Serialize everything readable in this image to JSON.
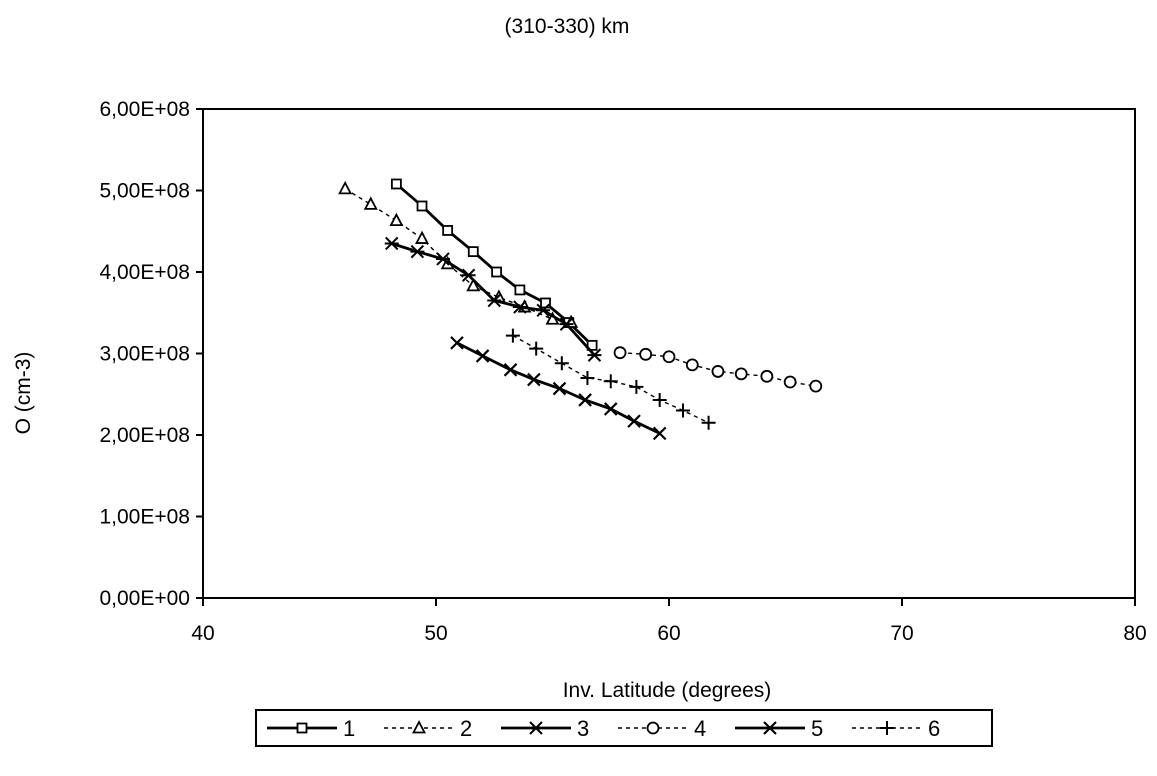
{
  "chart_data": {
    "type": "line",
    "title": "(310-330) km",
    "xlabel": "Inv. Latitude (degrees)",
    "ylabel": "O (cm-3)",
    "xlim": [
      40,
      80
    ],
    "ylim": [
      0,
      600000000
    ],
    "x_ticks": [
      40,
      50,
      60,
      70,
      80
    ],
    "x_tick_labels": [
      "40",
      "50",
      "60",
      "70",
      "80"
    ],
    "y_ticks": [
      0,
      100000000,
      200000000,
      300000000,
      400000000,
      500000000,
      600000000
    ],
    "y_tick_labels": [
      "0,00E+00",
      "1,00E+08",
      "2,00E+08",
      "3,00E+08",
      "4,00E+08",
      "5,00E+08",
      "6,00E+08"
    ],
    "grid": false,
    "legend_position": "bottom",
    "series": [
      {
        "name": "1",
        "line": "solid",
        "marker": "square",
        "points": [
          [
            48.3,
            508000000
          ],
          [
            49.4,
            481000000
          ],
          [
            50.5,
            451000000
          ],
          [
            51.6,
            425000000
          ],
          [
            52.6,
            400000000
          ],
          [
            53.6,
            378000000
          ],
          [
            54.7,
            362000000
          ],
          [
            55.7,
            338000000
          ],
          [
            56.7,
            310000000
          ]
        ]
      },
      {
        "name": "2",
        "line": "dashed",
        "marker": "triangle",
        "points": [
          [
            46.1,
            502000000
          ],
          [
            47.2,
            483000000
          ],
          [
            48.3,
            463000000
          ],
          [
            49.4,
            441000000
          ],
          [
            50.5,
            410000000
          ],
          [
            51.6,
            383000000
          ],
          [
            52.7,
            369000000
          ],
          [
            53.8,
            357000000
          ],
          [
            55.0,
            342000000
          ],
          [
            55.8,
            338000000
          ]
        ]
      },
      {
        "name": "3",
        "line": "solid",
        "marker": "asterisk",
        "points": [
          [
            48.1,
            435000000
          ],
          [
            49.2,
            425000000
          ],
          [
            50.3,
            416000000
          ],
          [
            51.4,
            396000000
          ],
          [
            52.5,
            365000000
          ],
          [
            53.6,
            357000000
          ],
          [
            54.6,
            353000000
          ],
          [
            55.6,
            336000000
          ],
          [
            56.8,
            298000000
          ]
        ]
      },
      {
        "name": "4",
        "line": "dashed",
        "marker": "circle",
        "points": [
          [
            57.9,
            301000000
          ],
          [
            59.0,
            299000000
          ],
          [
            60.0,
            296000000
          ],
          [
            61.0,
            286000000
          ],
          [
            62.1,
            278000000
          ],
          [
            63.1,
            275000000
          ],
          [
            64.2,
            272000000
          ],
          [
            65.2,
            265000000
          ],
          [
            66.3,
            260000000
          ]
        ]
      },
      {
        "name": "5",
        "line": "solid",
        "marker": "x",
        "points": [
          [
            50.9,
            313000000
          ],
          [
            52.0,
            297000000
          ],
          [
            53.2,
            280000000
          ],
          [
            54.2,
            268000000
          ],
          [
            55.3,
            257000000
          ],
          [
            56.4,
            243000000
          ],
          [
            57.5,
            232000000
          ],
          [
            58.5,
            217000000
          ],
          [
            59.6,
            202000000
          ]
        ]
      },
      {
        "name": "6",
        "line": "dashed",
        "marker": "plus",
        "points": [
          [
            53.3,
            322000000
          ],
          [
            54.3,
            306000000
          ],
          [
            55.4,
            288000000
          ],
          [
            56.5,
            270000000
          ],
          [
            57.5,
            266000000
          ],
          [
            58.6,
            259000000
          ],
          [
            59.6,
            243000000
          ],
          [
            60.6,
            230000000
          ],
          [
            61.7,
            215000000
          ]
        ]
      }
    ]
  }
}
